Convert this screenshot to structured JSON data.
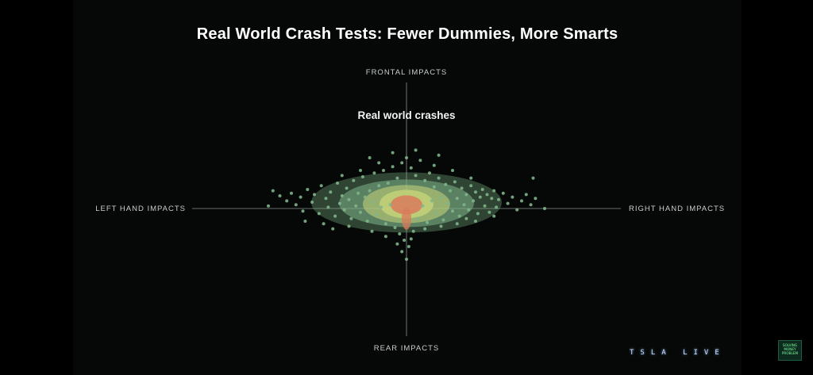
{
  "slide": {
    "title": "Real World Crash Tests: Fewer Dummies, More Smarts",
    "subtitle": "Real world crashes",
    "axes": {
      "top": "FRONTAL IMPACTS",
      "bottom": "REAR IMPACTS",
      "left": "LEFT HAND IMPACTS",
      "right": "RIGHT HAND IMPACTS"
    }
  },
  "branding": {
    "event_logo": "TSLA LIVE",
    "badge_lines": [
      "SOLVING",
      "MONEY",
      "PROBLEM"
    ]
  },
  "colors": {
    "background": "#050806",
    "axis_line": "#8a8f8c",
    "density_low": "#7fb58a",
    "density_mid": "#c8d67a",
    "density_high": "#d97a5a"
  },
  "chart_data": {
    "type": "scatter",
    "title": "Real world crashes",
    "description_axes": {
      "x_negative": "LEFT HAND IMPACTS",
      "x_positive": "RIGHT HAND IMPACTS",
      "y_positive": "FRONTAL IMPACTS",
      "y_negative": "REAR IMPACTS"
    },
    "xlim": [
      -100,
      100
    ],
    "ylim": [
      -100,
      100
    ],
    "density_core": {
      "x": 0,
      "y": 6,
      "level": "high"
    },
    "points": [
      [
        -58,
        14
      ],
      [
        -55,
        10
      ],
      [
        -52,
        6
      ],
      [
        -50,
        12
      ],
      [
        -48,
        3
      ],
      [
        -46,
        9
      ],
      [
        -45,
        -2
      ],
      [
        -43,
        15
      ],
      [
        -41,
        5
      ],
      [
        -40,
        11
      ],
      [
        -38,
        -4
      ],
      [
        -37,
        18
      ],
      [
        -35,
        8
      ],
      [
        -34,
        1
      ],
      [
        -33,
        13
      ],
      [
        -31,
        -6
      ],
      [
        -30,
        20
      ],
      [
        -29,
        4
      ],
      [
        -28,
        10
      ],
      [
        -27,
        -1
      ],
      [
        -26,
        16
      ],
      [
        -25,
        7
      ],
      [
        -24,
        -8
      ],
      [
        -23,
        22
      ],
      [
        -22,
        2
      ],
      [
        -21,
        12
      ],
      [
        -20,
        -3
      ],
      [
        -19,
        25
      ],
      [
        -18,
        9
      ],
      [
        -17,
        -10
      ],
      [
        -16,
        14
      ],
      [
        -15,
        5
      ],
      [
        -14,
        28
      ],
      [
        -13,
        -5
      ],
      [
        -12,
        18
      ],
      [
        -11,
        1
      ],
      [
        -10,
        30
      ],
      [
        -9,
        -12
      ],
      [
        -8,
        20
      ],
      [
        -7,
        3
      ],
      [
        -6,
        33
      ],
      [
        -5,
        -15
      ],
      [
        -4,
        24
      ],
      [
        -3,
        -20
      ],
      [
        -2,
        36
      ],
      [
        -1,
        -25
      ],
      [
        0,
        40
      ],
      [
        1,
        -30
      ],
      [
        2,
        32
      ],
      [
        3,
        -18
      ],
      [
        4,
        26
      ],
      [
        5,
        -8
      ],
      [
        6,
        38
      ],
      [
        7,
        2
      ],
      [
        8,
        22
      ],
      [
        9,
        -11
      ],
      [
        10,
        28
      ],
      [
        11,
        6
      ],
      [
        12,
        17
      ],
      [
        13,
        -4
      ],
      [
        14,
        24
      ],
      [
        15,
        9
      ],
      [
        16,
        -9
      ],
      [
        17,
        19
      ],
      [
        18,
        4
      ],
      [
        19,
        14
      ],
      [
        20,
        -2
      ],
      [
        21,
        21
      ],
      [
        22,
        8
      ],
      [
        23,
        -6
      ],
      [
        24,
        16
      ],
      [
        25,
        3
      ],
      [
        26,
        11
      ],
      [
        27,
        -1
      ],
      [
        28,
        18
      ],
      [
        29,
        6
      ],
      [
        30,
        13
      ],
      [
        31,
        -4
      ],
      [
        32,
        9
      ],
      [
        33,
        15
      ],
      [
        34,
        2
      ],
      [
        35,
        11
      ],
      [
        36,
        -3
      ],
      [
        37,
        8
      ],
      [
        38,
        14
      ],
      [
        39,
        1
      ],
      [
        40,
        7
      ],
      [
        42,
        12
      ],
      [
        44,
        4
      ],
      [
        46,
        9
      ],
      [
        48,
        -1
      ],
      [
        50,
        6
      ],
      [
        52,
        11
      ],
      [
        54,
        3
      ],
      [
        56,
        8
      ],
      [
        55,
        24
      ],
      [
        -44,
        -10
      ],
      [
        -36,
        -12
      ],
      [
        -25,
        -14
      ],
      [
        -15,
        -18
      ],
      [
        -9,
        -22
      ],
      [
        -4,
        -28
      ],
      [
        2,
        -24
      ],
      [
        8,
        -16
      ],
      [
        15,
        -14
      ],
      [
        22,
        -12
      ],
      [
        30,
        -10
      ],
      [
        38,
        -6
      ],
      [
        -6,
        44
      ],
      [
        4,
        46
      ],
      [
        -12,
        36
      ],
      [
        12,
        34
      ],
      [
        -20,
        30
      ],
      [
        20,
        30
      ],
      [
        -28,
        26
      ],
      [
        28,
        24
      ],
      [
        -60,
        2
      ],
      [
        60,
        0
      ],
      [
        -32,
        -16
      ],
      [
        26,
        -8
      ],
      [
        -2,
        -34
      ],
      [
        0,
        -40
      ],
      [
        -16,
        40
      ],
      [
        14,
        42
      ]
    ]
  }
}
